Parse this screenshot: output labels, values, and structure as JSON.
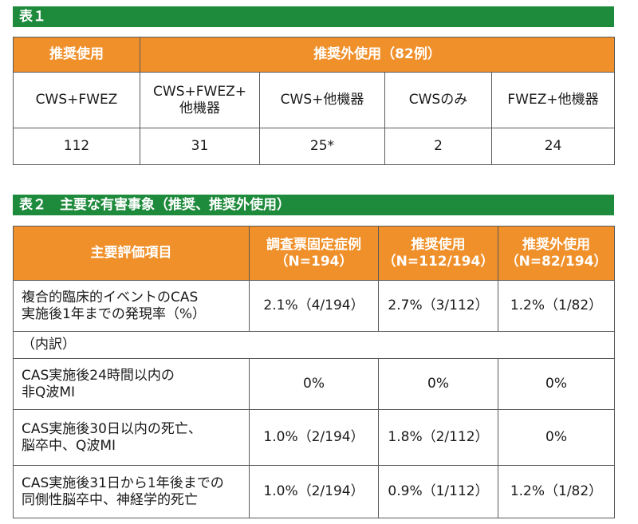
{
  "table1": {
    "title": "表１",
    "header_recommended": "推奨使用",
    "header_off_label": "推奨外使用（82例）",
    "col_labels": [
      "CWS+FWEZ",
      "CWS+FWEZ+\n他機器",
      "CWS+他機器",
      "CWSのみ",
      "FWEZ+他機器"
    ],
    "values": [
      "112",
      "31",
      "25*",
      "2",
      "24"
    ]
  },
  "table2": {
    "title": "表２　主要な有害事象（推奨、推奨外使用）",
    "headers": [
      "主要評価項目",
      "調査票固定症例\n（N=194）",
      "推奨使用\n（N=112/194）",
      "推奨外使用\n（N=82/194）"
    ],
    "rows": [
      {
        "label": "複合的臨床的イベントのCAS\n実施後1年までの発現率（%）",
        "values": [
          "2.1%（4/194）",
          "2.7%（3/112）",
          "1.2%（1/82）"
        ]
      },
      {
        "label": "（内訳）",
        "values": [
          "",
          "",
          ""
        ]
      },
      {
        "label": "CAS実施後24時間以内の\n非Q波MI",
        "values": [
          "0%",
          "0%",
          "0%"
        ]
      },
      {
        "label": "CAS実施後30日以内の死亡、\n脳卒中、Q波MI",
        "values": [
          "1.0%（2/194）",
          "1.8%（2/112）",
          "0%"
        ]
      },
      {
        "label": "CAS実施後31日から1年後までの\n同側性脳卒中、神経学的死亡",
        "values": [
          "1.0%（2/194）",
          "0.9%（1/112）",
          "1.2%（1/82）"
        ]
      }
    ]
  },
  "colors": {
    "green": "#1e8a3c",
    "orange": "#f0902a",
    "border": "#5a5a5a"
  }
}
